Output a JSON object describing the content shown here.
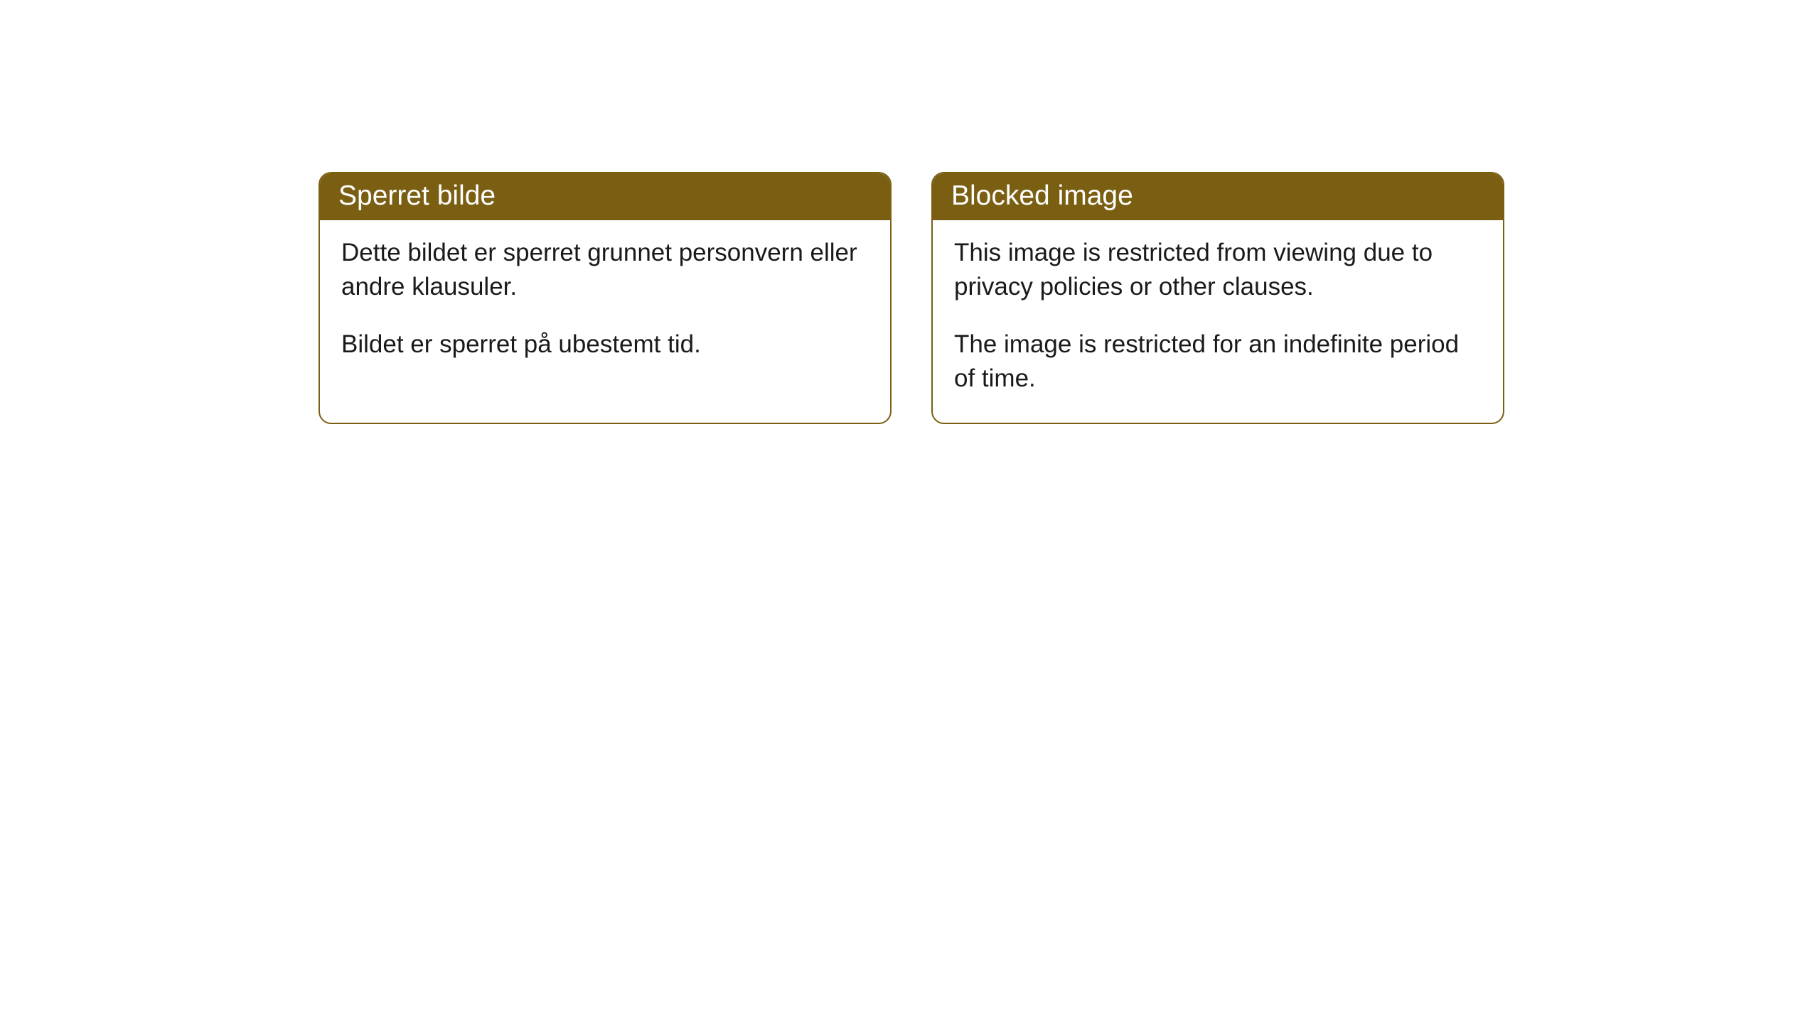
{
  "cards": [
    {
      "title": "Sperret bilde",
      "paragraph1": "Dette bildet er sperret grunnet personvern eller andre klausuler.",
      "paragraph2": "Bildet er sperret på ubestemt tid."
    },
    {
      "title": "Blocked image",
      "paragraph1": "This image is restricted from viewing due to privacy policies or other clauses.",
      "paragraph2": "The image is restricted for an indefinite period of time."
    }
  ],
  "colors": {
    "header_background": "#7a5e12",
    "header_text": "#ffffff",
    "body_background": "#ffffff",
    "body_text": "#1a1a1a",
    "border": "#7a5e12"
  },
  "typography": {
    "header_fontsize": 39,
    "body_fontsize": 35
  }
}
